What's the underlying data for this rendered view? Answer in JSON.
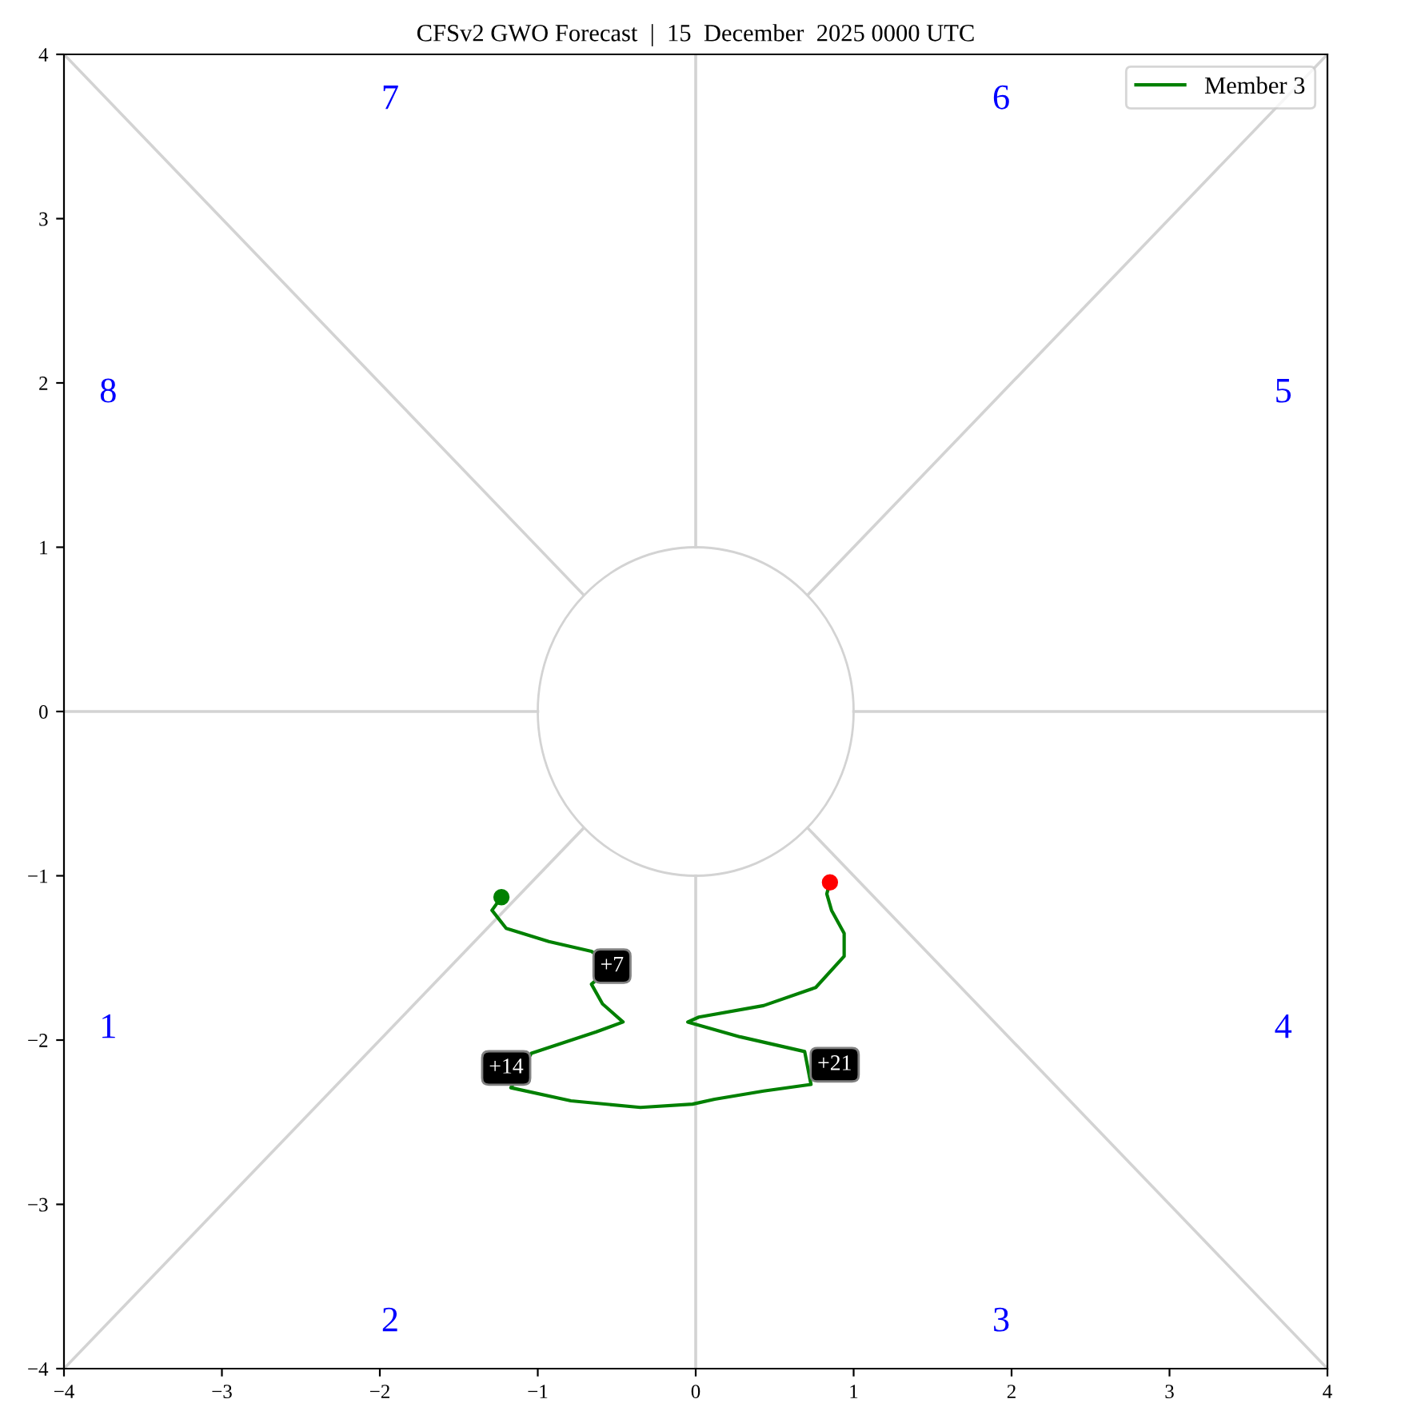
{
  "chart_data": {
    "type": "line",
    "title": "CFSv2 GWO Forecast  |  15  December  2025 0000 UTC",
    "xlim": [
      -4,
      4
    ],
    "ylim": [
      -4,
      4
    ],
    "xticks": [
      {
        "value": -4,
        "label": "−4"
      },
      {
        "value": -3,
        "label": "−3"
      },
      {
        "value": -2,
        "label": "−2"
      },
      {
        "value": -1,
        "label": "−1"
      },
      0,
      1,
      2,
      3,
      4
    ],
    "yticks": [
      {
        "value": -4,
        "label": "−4"
      },
      {
        "value": -3,
        "label": "−3"
      },
      {
        "value": -2,
        "label": "−2"
      },
      {
        "value": -1,
        "label": "−1"
      },
      0,
      1,
      2,
      3,
      4
    ],
    "grid": false,
    "legend": "top right",
    "series": [
      {
        "color": "#d3d3d3",
        "x": [
          1,
          4
        ],
        "values": [
          0,
          0
        ]
      },
      {
        "color": "#d3d3d3",
        "x": [
          0.71,
          4
        ],
        "values": [
          0.71,
          4
        ]
      },
      {
        "color": "#d3d3d3",
        "x": [
          0,
          0
        ],
        "values": [
          1,
          4
        ]
      },
      {
        "color": "#d3d3d3",
        "x": [
          -0.71,
          -4
        ],
        "values": [
          0.71,
          4
        ]
      },
      {
        "color": "#d3d3d3",
        "x": [
          -1,
          -4
        ],
        "values": [
          0,
          0
        ]
      },
      {
        "color": "#d3d3d3",
        "x": [
          -0.71,
          -4
        ],
        "values": [
          -0.71,
          -4
        ]
      },
      {
        "color": "#d3d3d3",
        "x": [
          0,
          0
        ],
        "values": [
          -1,
          -4
        ]
      },
      {
        "color": "#d3d3d3",
        "x": [
          0.71,
          4
        ],
        "values": [
          -0.71,
          -4
        ]
      },
      {
        "name": "Member 3",
        "color": "#008000",
        "x": [
          -1.23,
          -1.29,
          -1.2,
          -0.93,
          -0.66,
          -0.53,
          -0.66,
          -0.59,
          -0.46,
          -0.63,
          -1.04,
          -1.17,
          -0.79,
          -0.35,
          -0.02,
          0.12,
          0.43,
          0.73,
          0.69,
          0.28,
          -0.05,
          0.02,
          0.43,
          0.76,
          0.94,
          0.94,
          0.86,
          0.83,
          0.85
        ],
        "values": [
          -1.13,
          -1.21,
          -1.32,
          -1.4,
          -1.46,
          -1.55,
          -1.66,
          -1.78,
          -1.89,
          -1.95,
          -2.08,
          -2.29,
          -2.37,
          -2.41,
          -2.39,
          -2.36,
          -2.31,
          -2.27,
          -2.07,
          -1.98,
          -1.89,
          -1.86,
          -1.79,
          -1.68,
          -1.49,
          -1.35,
          -1.21,
          -1.11,
          -1.04
        ]
      },
      {
        "type": "scatter",
        "marker": "circle",
        "color": "#008000",
        "x": [
          -1.23
        ],
        "values": [
          -1.13
        ]
      },
      {
        "type": "scatter",
        "marker": "circle",
        "color": "#ff0000",
        "x": [
          0.85
        ],
        "values": [
          -1.04
        ]
      }
    ],
    "annotations": [
      {
        "text": "+7",
        "x": -0.53,
        "y": -1.55
      },
      {
        "text": "+14",
        "x": -1.2,
        "y": -2.17
      },
      {
        "text": "+21",
        "x": 0.88,
        "y": -2.15
      },
      "1",
      "2",
      "3",
      "4",
      "5",
      "6",
      "7",
      "8"
    ]
  }
}
